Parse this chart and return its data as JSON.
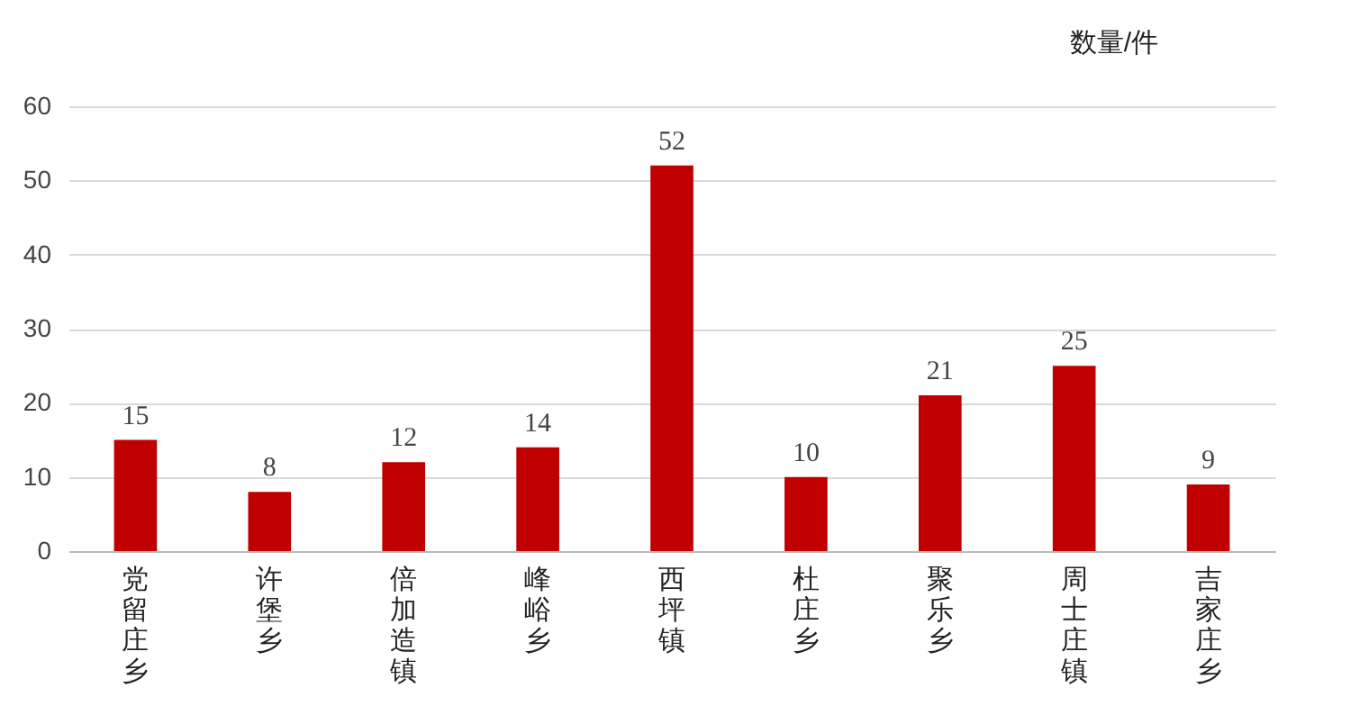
{
  "chart_data": {
    "type": "bar",
    "ylabel": "数量/件",
    "categories": [
      "党留庄乡",
      "许堡乡",
      "倍加造镇",
      "峰峪乡",
      "西坪镇",
      "杜庄乡",
      "聚乐乡",
      "周士庄镇",
      "吉家庄乡"
    ],
    "values": [
      15,
      8,
      12,
      14,
      52,
      10,
      21,
      25,
      9
    ],
    "color": "#c00000",
    "ylim": [
      0,
      60
    ],
    "yticks": [
      0,
      10,
      20,
      30,
      40,
      50,
      60
    ],
    "grid": "y",
    "data_labels": true
  }
}
